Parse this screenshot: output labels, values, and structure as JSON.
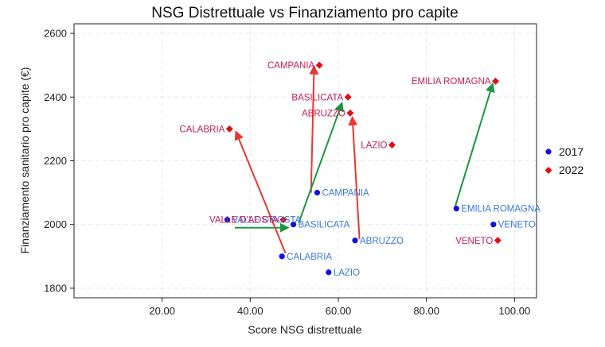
{
  "chart_data": {
    "type": "scatter",
    "title": "NSG Distrettuale vs Finanziamento pro capite",
    "xlabel": "Score NSG distrettuale",
    "ylabel": "Finanziamento sanitario pro capite (€)",
    "xlim": [
      0,
      105
    ],
    "ylim": [
      1770,
      2630
    ],
    "x_ticks": [
      20,
      40,
      60,
      80,
      100
    ],
    "x_tick_labels": [
      "20.00",
      "40.00",
      "60.00",
      "80.00",
      "100.00"
    ],
    "y_ticks": [
      1800,
      2000,
      2200,
      2400,
      2600
    ],
    "y_tick_labels": [
      "1800",
      "2000",
      "2200",
      "2400",
      "2600"
    ],
    "grid": true,
    "legend_position": "right",
    "series": [
      {
        "name": "2017",
        "color": "#1010e0",
        "label_color": "#3a78e0",
        "marker": "circle",
        "points": [
          {
            "label": "VALLE D'AOSTA",
            "x": 34.8,
            "y": 2015
          },
          {
            "label": "CAMPANIA",
            "x": 55.2,
            "y": 2100
          },
          {
            "label": "BASILICATA",
            "x": 49.8,
            "y": 2000
          },
          {
            "label": "ABRUZZO",
            "x": 63.8,
            "y": 1950
          },
          {
            "label": "CALABRIA",
            "x": 47.2,
            "y": 1900
          },
          {
            "label": "LAZIO",
            "x": 57.8,
            "y": 1850
          },
          {
            "label": "EMILIA ROMAGNA",
            "x": 86.8,
            "y": 2050
          },
          {
            "label": "VENETO",
            "x": 95.2,
            "y": 2000
          }
        ]
      },
      {
        "name": "2022",
        "color": "#e01010",
        "label_color": "#c41e54",
        "marker": "diamond",
        "points": [
          {
            "label": "VALLE D'AOSTA",
            "x": 47.5,
            "y": 2015
          },
          {
            "label": "CAMPANIA",
            "x": 55.7,
            "y": 2500
          },
          {
            "label": "BASILICATA",
            "x": 62.2,
            "y": 2400
          },
          {
            "label": "ABRUZZO",
            "x": 62.7,
            "y": 2350
          },
          {
            "label": "CALABRIA",
            "x": 35.3,
            "y": 2300
          },
          {
            "label": "LAZIO",
            "x": 72.2,
            "y": 2250
          },
          {
            "label": "EMILIA ROMAGNA",
            "x": 95.7,
            "y": 2450
          },
          {
            "label": "VENETO",
            "x": 96.2,
            "y": 1950
          }
        ]
      }
    ],
    "arrows": [
      {
        "from": [
          36.5,
          1990
        ],
        "to": [
          48.5,
          1990
        ],
        "color": "#1a9641"
      },
      {
        "from": [
          53.8,
          2100
        ],
        "to": [
          54.5,
          2495
        ],
        "color": "#e53935"
      },
      {
        "from": [
          51.0,
          2005
        ],
        "to": [
          60.8,
          2380
        ],
        "color": "#1a9641"
      },
      {
        "from": [
          64.8,
          1955
        ],
        "to": [
          63.2,
          2335
        ],
        "color": "#e53935"
      },
      {
        "from": [
          48.0,
          1910
        ],
        "to": [
          36.8,
          2290
        ],
        "color": "#e53935"
      },
      {
        "from": [
          86.5,
          2055
        ],
        "to": [
          95.0,
          2440
        ],
        "color": "#1a9641"
      }
    ]
  }
}
